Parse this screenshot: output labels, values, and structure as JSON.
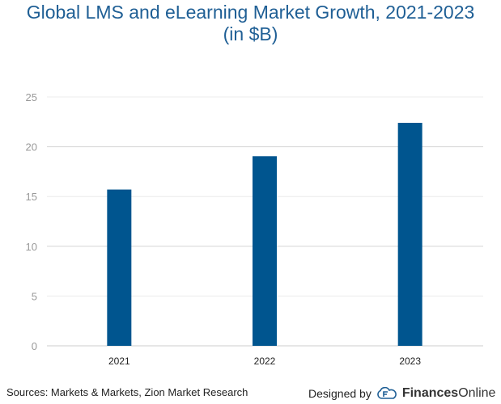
{
  "chart_data": {
    "type": "bar",
    "title": "Global LMS and eLearning Market Growth, 2021-2023",
    "subtitle": "(in $B)",
    "categories": [
      "2021",
      "2022",
      "2023"
    ],
    "values": [
      15.7,
      19.05,
      22.4
    ],
    "xlabel": "",
    "ylabel": "",
    "ylim": [
      0,
      25
    ],
    "yticks": [
      0,
      5,
      10,
      15,
      20,
      25
    ],
    "grid": true,
    "bar_color": "#00558f"
  },
  "footer": {
    "sources": "Sources: Markets & Markets, Zion Market Research",
    "designed_by": "Designed by",
    "brand_bold": "Finances",
    "brand_light": "Online",
    "brand_icon": "cloud-f-logo-icon"
  }
}
